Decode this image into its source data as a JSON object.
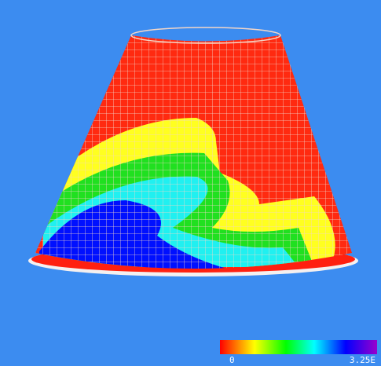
{
  "colorbar": {
    "min_label": "0",
    "max_label": "3.25E"
  }
}
